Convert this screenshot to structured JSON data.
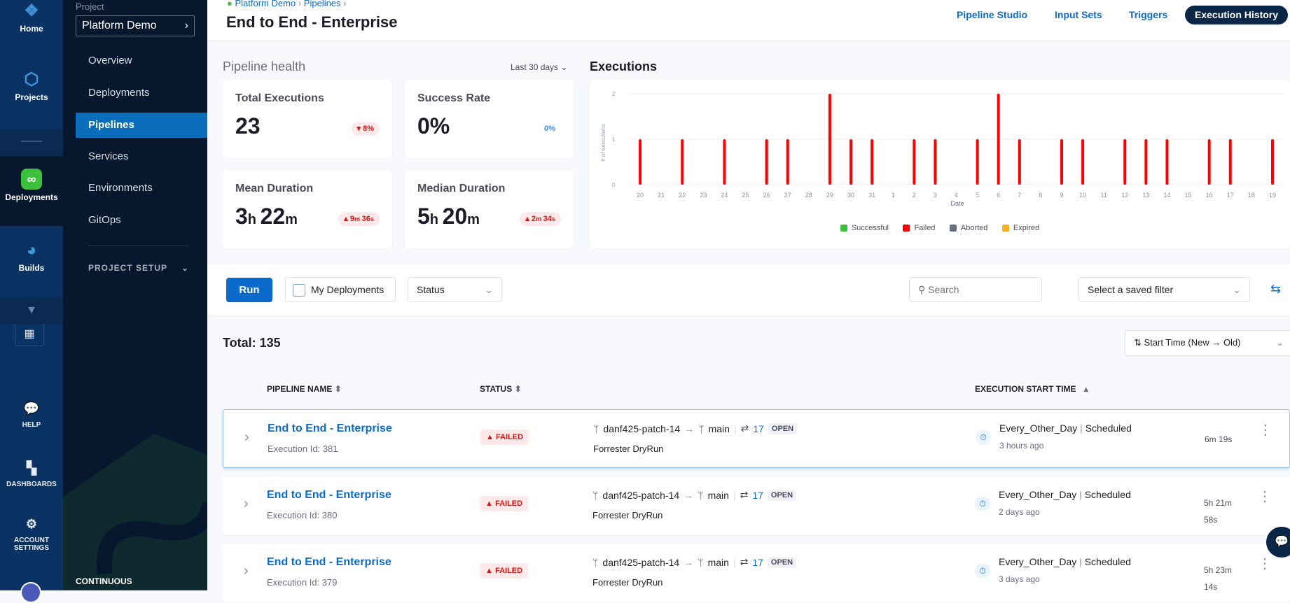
{
  "rail": {
    "items": [
      {
        "label": "Home",
        "icon": "home-icon"
      },
      {
        "label": "Projects",
        "icon": "cube-icon"
      },
      {
        "label": "Deployments",
        "icon": "deployments-icon"
      },
      {
        "label": "Builds",
        "icon": "builds-icon"
      }
    ],
    "bottom": [
      {
        "label": "HELP",
        "icon": "help-icon"
      },
      {
        "label": "DASHBOARDS",
        "icon": "dashboard-icon"
      },
      {
        "label": "ACCOUNT",
        "label2": "SETTINGS",
        "icon": "gear-icon"
      }
    ]
  },
  "nav": {
    "project_label": "Project",
    "project_name": "Platform Demo",
    "items": [
      "Overview",
      "Deployments",
      "Pipelines",
      "Services",
      "Environments",
      "GitOps"
    ],
    "active": "Pipelines",
    "section": "PROJECT SETUP",
    "footer": "CONTINUOUS"
  },
  "header": {
    "breadcrumb": [
      "Platform Demo",
      "Pipelines"
    ],
    "title": "End to End - Enterprise",
    "tabs": [
      "Pipeline Studio",
      "Input Sets",
      "Triggers",
      "Execution History"
    ],
    "active_tab": "Execution History"
  },
  "health": {
    "title": "Pipeline health",
    "range": "Last 30 days",
    "cards": [
      {
        "title": "Total Executions",
        "value": "23",
        "delta": "8%",
        "trend": "down"
      },
      {
        "title": "Success Rate",
        "value": "0%",
        "delta": "0%",
        "trend": "neutral"
      },
      {
        "title": "Mean Duration",
        "h": "3",
        "m": "22",
        "delta_m": "9",
        "delta_s": "36",
        "trend": "up"
      },
      {
        "title": "Median Duration",
        "h": "5",
        "m": "20",
        "delta_m": "2",
        "delta_s": "34",
        "trend": "up"
      }
    ]
  },
  "chart_data": {
    "type": "bar",
    "title": "Executions",
    "xlabel": "Date",
    "ylabel": "# of executions",
    "ylim": [
      0,
      2
    ],
    "yticks": [
      0,
      1,
      2
    ],
    "grid": true,
    "legend_position": "bottom",
    "categories": [
      "20",
      "21",
      "22",
      "23",
      "24",
      "25",
      "26",
      "27",
      "28",
      "29",
      "30",
      "31",
      "1",
      "2",
      "3",
      "4",
      "5",
      "6",
      "7",
      "8",
      "9",
      "10",
      "11",
      "12",
      "13",
      "14",
      "15",
      "16",
      "17",
      "18",
      "19"
    ],
    "series": [
      {
        "name": "Successful",
        "color": "#3dc13c",
        "values": [
          0,
          0,
          0,
          0,
          0,
          0,
          0,
          0,
          0,
          0,
          0,
          0,
          0,
          0,
          0,
          0,
          0,
          0,
          0,
          0,
          0,
          0,
          0,
          0,
          0,
          0,
          0,
          0,
          0,
          0,
          0
        ]
      },
      {
        "name": "Failed",
        "color": "#ff0000",
        "values": [
          1,
          0,
          1,
          0,
          1,
          0,
          1,
          1,
          0,
          2,
          1,
          1,
          0,
          1,
          1,
          0,
          1,
          2,
          1,
          0,
          1,
          1,
          0,
          1,
          1,
          1,
          0,
          1,
          1,
          0,
          1
        ]
      },
      {
        "name": "Aborted",
        "color": "#6b6d85",
        "values": [
          0,
          0,
          0,
          0,
          0,
          0,
          0,
          0,
          0,
          0,
          0,
          0,
          0,
          0,
          0,
          0,
          0,
          0,
          0,
          0,
          0,
          0,
          0,
          0,
          0,
          0,
          0,
          0,
          0,
          0,
          0
        ]
      },
      {
        "name": "Expired",
        "color": "#ffb020",
        "values": [
          0,
          0,
          0,
          0,
          0,
          0,
          0,
          0,
          0,
          0,
          0,
          0,
          0,
          0,
          0,
          0,
          0,
          0,
          0,
          0,
          0,
          0,
          0,
          0,
          0,
          0,
          0,
          0,
          0,
          0,
          0
        ]
      }
    ]
  },
  "toolbar": {
    "run": "Run",
    "my_deployments": "My Deployments",
    "status": "Status",
    "search_placeholder": "Search",
    "saved_filter": "Select a saved filter"
  },
  "list": {
    "total": "Total: 135",
    "sort": "Start Time (New → Old)",
    "columns": [
      "PIPELINE NAME",
      "STATUS",
      "EXECUTION START TIME"
    ],
    "rows": [
      {
        "name": "End to End - Enterprise",
        "exec_id": "Execution Id: 381",
        "status": "FAILED",
        "source": "danf425-patch-14",
        "target": "main",
        "pr": "17",
        "pr_state": "OPEN",
        "desc": "Forrester DryRun",
        "trigger": "Every_Other_Day",
        "trigger_type": "Scheduled",
        "ago": "3 hours ago",
        "dur1": "6m 19s",
        "dur2": ""
      },
      {
        "name": "End to End - Enterprise",
        "exec_id": "Execution Id: 380",
        "status": "FAILED",
        "source": "danf425-patch-14",
        "target": "main",
        "pr": "17",
        "pr_state": "OPEN",
        "desc": "Forrester DryRun",
        "trigger": "Every_Other_Day",
        "trigger_type": "Scheduled",
        "ago": "2 days ago",
        "dur1": "5h 21m",
        "dur2": "58s"
      },
      {
        "name": "End to End - Enterprise",
        "exec_id": "Execution Id: 379",
        "status": "FAILED",
        "source": "danf425-patch-14",
        "target": "main",
        "pr": "17",
        "pr_state": "OPEN",
        "desc": "Forrester DryRun",
        "trigger": "Every_Other_Day",
        "trigger_type": "Scheduled",
        "ago": "3 days ago",
        "dur1": "5h 23m",
        "dur2": "14s"
      }
    ]
  }
}
